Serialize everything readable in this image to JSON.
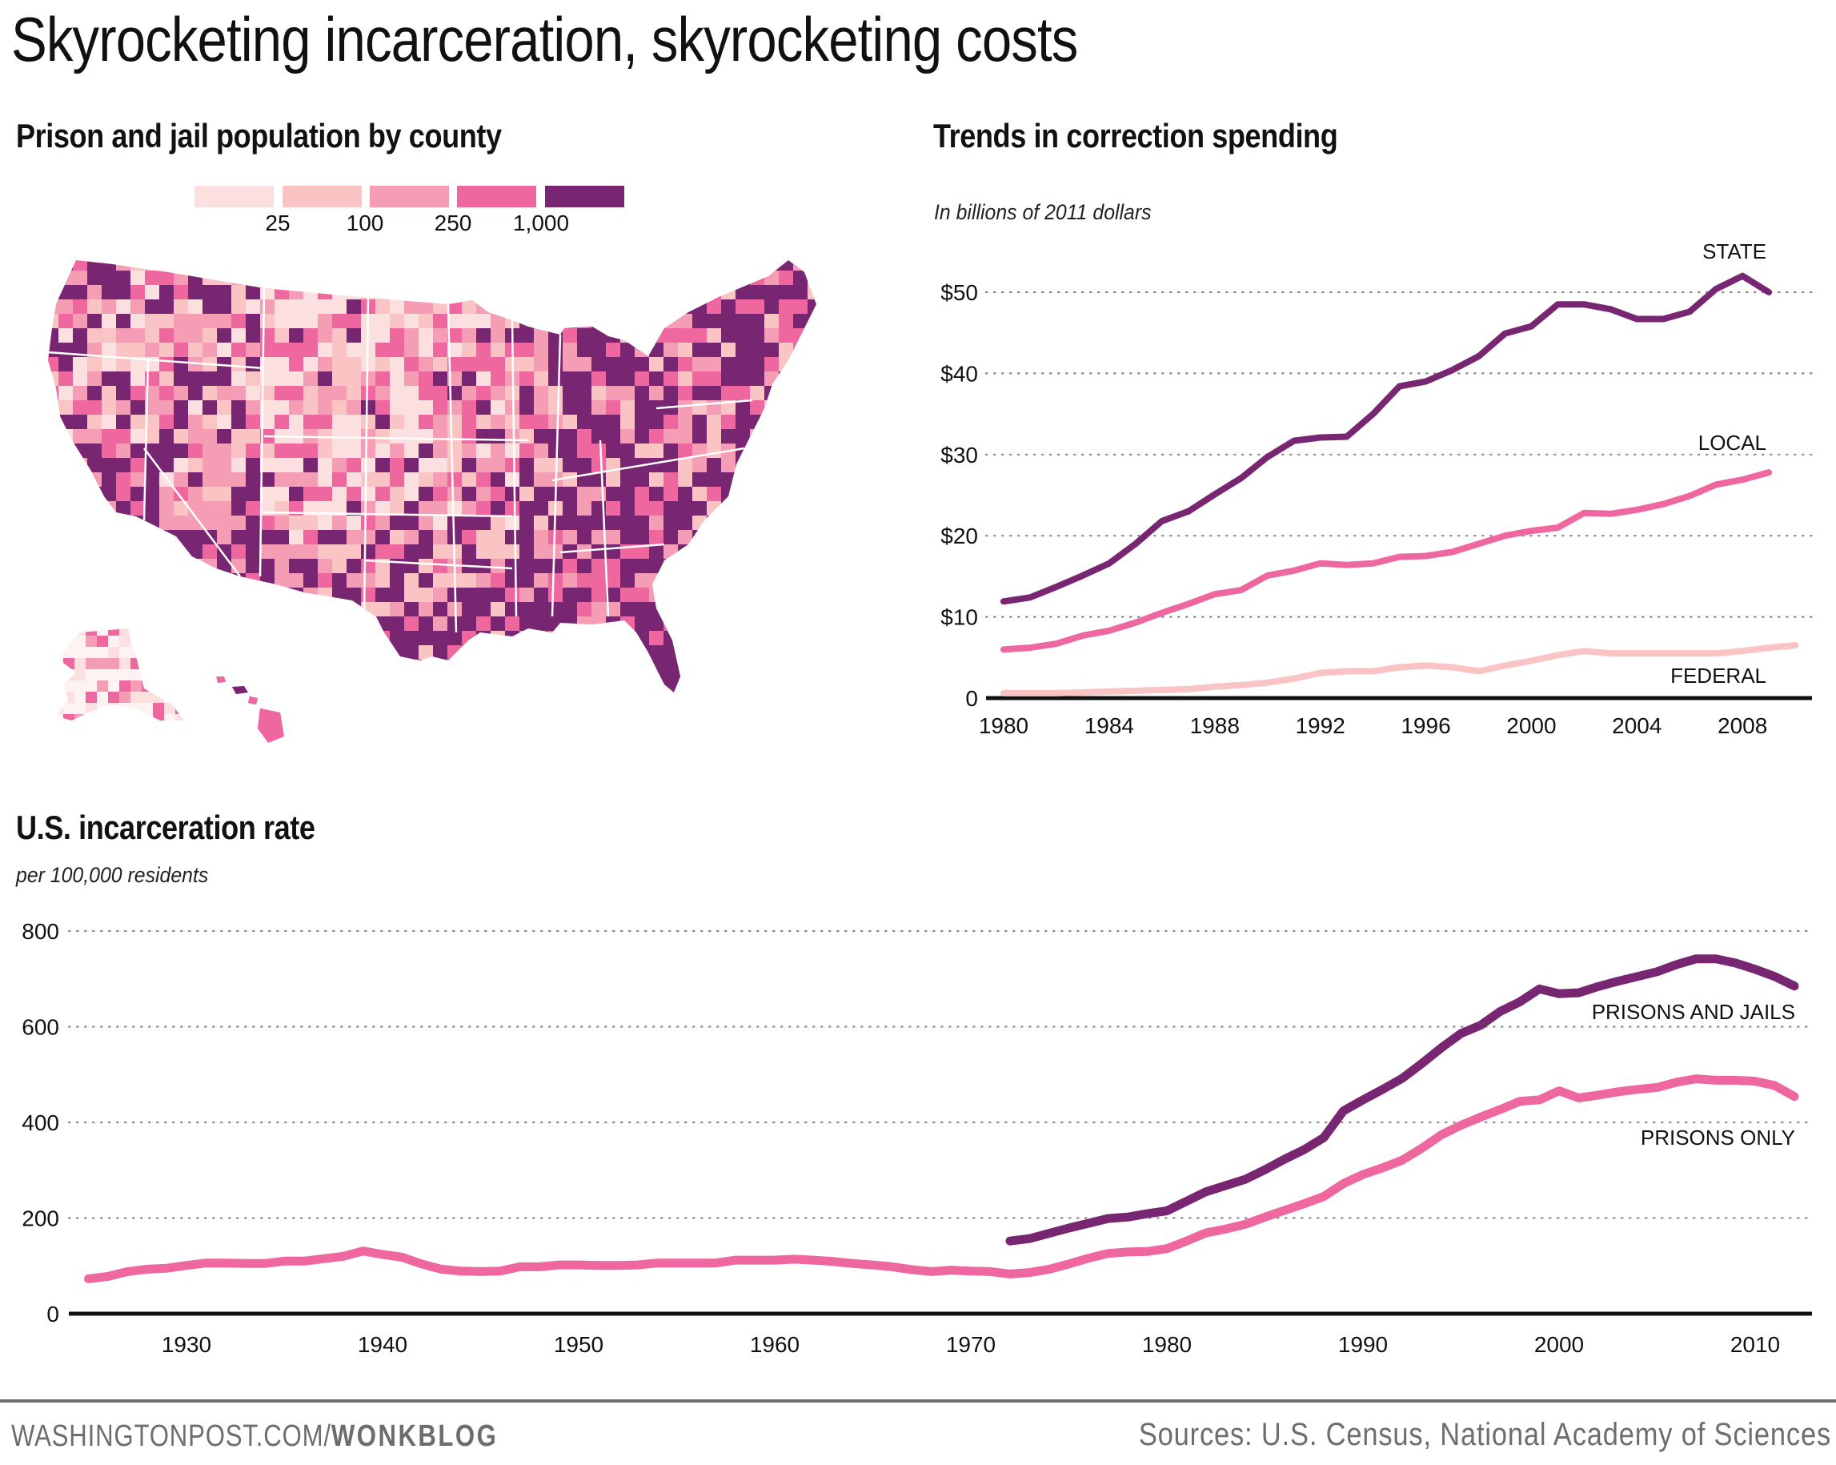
{
  "title": "Skyrocketing incarceration, skyrocketing costs",
  "footer": {
    "site": "WASHINGTONPOST.COM/",
    "section": "WONKBLOG",
    "sources": "Sources: U.S. Census, National Academy of Sciences"
  },
  "colors": {
    "purple": "#782671",
    "pink": "#EE679F",
    "light_pink": "#F9C4C3",
    "grid": "#999999",
    "axis": "#111111"
  },
  "chart_data": [
    {
      "id": "map",
      "type": "heatmap",
      "title": "Prison and jail population by county",
      "legend": {
        "bins": [
          {
            "color": "#FCE0E0",
            "range": "< 25"
          },
          {
            "color": "#F9C4C3",
            "range": "25–100"
          },
          {
            "color": "#F59DB4",
            "range": "100–250"
          },
          {
            "color": "#EE679F",
            "range": "250–1,000"
          },
          {
            "color": "#782671",
            "range": "> 1,000"
          }
        ],
        "tick_labels": [
          "25",
          "100",
          "250",
          "1,000"
        ]
      }
    },
    {
      "id": "spending",
      "type": "line",
      "title": "Trends in correction spending",
      "subtitle": "In billions of 2011 dollars",
      "xlabel": "",
      "ylabel": "",
      "ylim": [
        0,
        50
      ],
      "yticks": [
        0,
        10,
        20,
        30,
        40,
        50
      ],
      "ytick_labels": [
        "0",
        "$10",
        "$20",
        "$30",
        "$40",
        "$50"
      ],
      "xlim": [
        1980,
        2010
      ],
      "xticks": [
        1980,
        1984,
        1988,
        1992,
        1996,
        2000,
        2004,
        2008
      ],
      "xtick_labels": [
        "1980",
        "1984",
        "1988",
        "1992",
        "1996",
        "2000",
        "2004",
        "2008"
      ],
      "grid": true,
      "series": [
        {
          "name": "STATE",
          "color": "#782671",
          "start_year": 1980,
          "values": [
            11.9,
            12.4,
            13.7,
            15.1,
            16.6,
            19.0,
            21.8,
            23.0,
            25.1,
            27.1,
            29.7,
            31.7,
            32.1,
            32.2,
            35.0,
            38.4,
            39.0,
            40.4,
            42.1,
            44.9,
            45.8,
            48.5,
            48.5,
            47.9,
            46.7,
            46.7,
            47.6,
            50.4,
            52.0,
            50.0
          ]
        },
        {
          "name": "LOCAL",
          "color": "#EE679F",
          "start_year": 1980,
          "values": [
            6.0,
            6.2,
            6.7,
            7.7,
            8.3,
            9.3,
            10.5,
            11.6,
            12.8,
            13.3,
            15.1,
            15.7,
            16.6,
            16.4,
            16.6,
            17.4,
            17.5,
            18.0,
            19.0,
            20.0,
            20.6,
            21.0,
            22.8,
            22.7,
            23.2,
            23.9,
            24.9,
            26.3,
            26.9,
            27.8
          ]
        },
        {
          "name": "FEDERAL",
          "color": "#F9C4C3",
          "start_year": 1980,
          "values": [
            0.6,
            0.6,
            0.6,
            0.7,
            0.8,
            0.9,
            1.0,
            1.1,
            1.4,
            1.6,
            1.9,
            2.4,
            3.1,
            3.3,
            3.3,
            3.8,
            4.0,
            3.8,
            3.3,
            4.0,
            4.6,
            5.3,
            5.8,
            5.5,
            5.5,
            5.5,
            5.5,
            5.5,
            5.8,
            6.2,
            6.5
          ]
        }
      ]
    },
    {
      "id": "incarceration",
      "type": "line",
      "title": "U.S. incarceration rate",
      "subtitle": "per 100,000 residents",
      "xlabel": "",
      "ylabel": "",
      "ylim": [
        0,
        800
      ],
      "yticks": [
        0,
        200,
        400,
        600,
        800
      ],
      "ytick_labels": [
        "0",
        "200",
        "400",
        "600",
        "800"
      ],
      "xlim": [
        1925,
        2012
      ],
      "xticks": [
        1930,
        1940,
        1950,
        1960,
        1970,
        1980,
        1990,
        2000,
        2010
      ],
      "xtick_labels": [
        "1930",
        "1940",
        "1950",
        "1960",
        "1970",
        "1980",
        "1990",
        "2000",
        "2010"
      ],
      "grid": true,
      "series": [
        {
          "name": "PRISONS AND JAILS",
          "color": "#782671",
          "start_year": 1972,
          "values": [
            152,
            157,
            168,
            179,
            189,
            199,
            202,
            209,
            215,
            235,
            255,
            268,
            281,
            301,
            323,
            343,
            368,
            424,
            447,
            469,
            492,
            523,
            556,
            586,
            603,
            632,
            652,
            679,
            669,
            671,
            684,
            695,
            705,
            715,
            730,
            742,
            742,
            733,
            720,
            705,
            685
          ]
        },
        {
          "name": "PRISONS ONLY",
          "color": "#EE679F",
          "start_year": 1925,
          "values": [
            73,
            78,
            88,
            93,
            95,
            101,
            106,
            106,
            105,
            105,
            110,
            110,
            115,
            120,
            131,
            124,
            118,
            104,
            93,
            89,
            88,
            89,
            98,
            98,
            102,
            102,
            101,
            101,
            102,
            106,
            106,
            106,
            106,
            112,
            112,
            112,
            114,
            112,
            109,
            105,
            102,
            98,
            92,
            88,
            91,
            89,
            88,
            83,
            86,
            93,
            104,
            116,
            126,
            129,
            130,
            136,
            152,
            169,
            177,
            187,
            202,
            216,
            230,
            245,
            272,
            291,
            305,
            321,
            346,
            374,
            394,
            411,
            427,
            444,
            447,
            466,
            451,
            457,
            464,
            469,
            473,
            484,
            491,
            488,
            488,
            486,
            477,
            454
          ]
        }
      ]
    }
  ]
}
